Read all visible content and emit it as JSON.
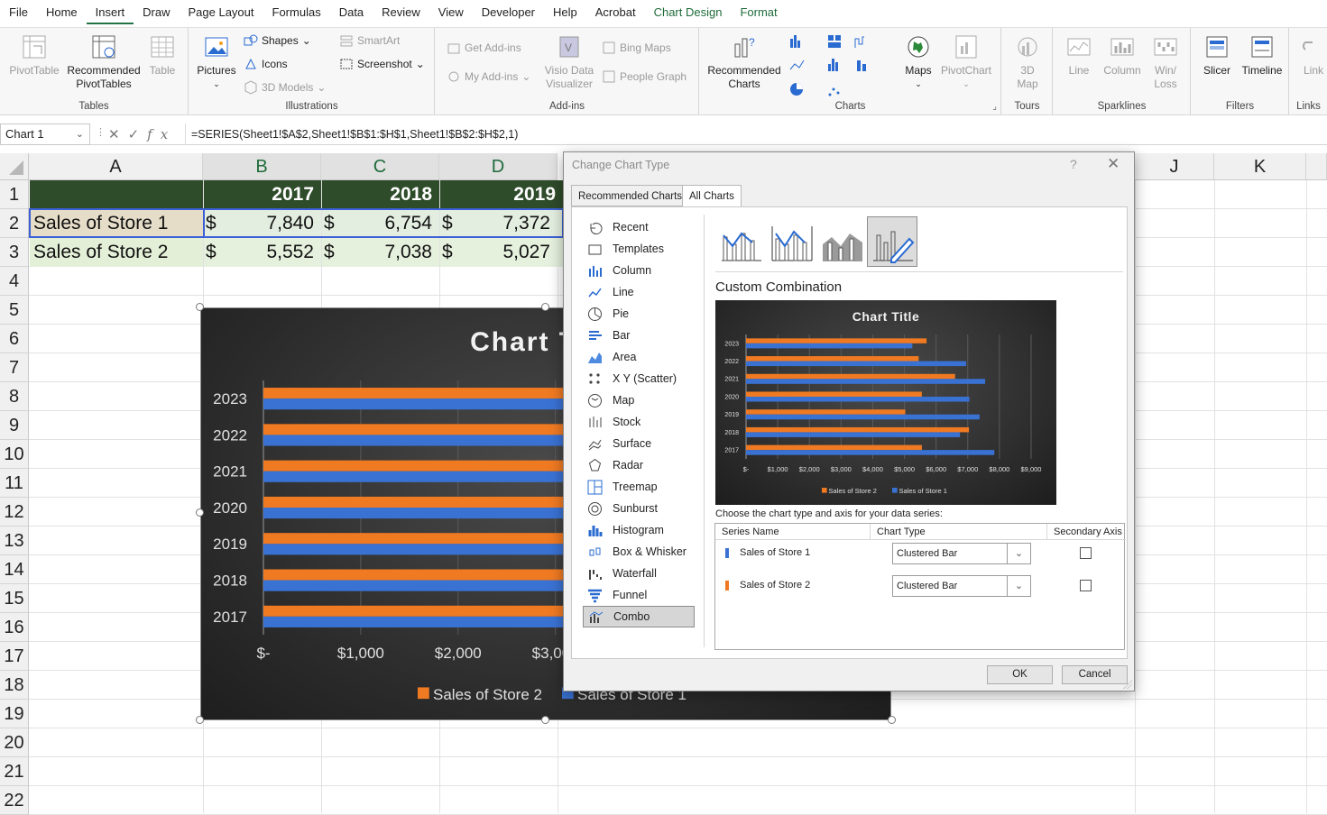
{
  "menu": {
    "tabs": [
      "File",
      "Home",
      "Insert",
      "Draw",
      "Page Layout",
      "Formulas",
      "Data",
      "Review",
      "View",
      "Developer",
      "Help",
      "Acrobat",
      "Chart Design",
      "Format"
    ],
    "active": "Insert"
  },
  "ribbon": {
    "tables": {
      "pivottable": "PivotTable",
      "recommended1": "Recommended",
      "recommended2": "PivotTables",
      "table": "Table",
      "label": "Tables"
    },
    "illustrations": {
      "pictures": "Pictures",
      "shapes": "Shapes",
      "icons": "Icons",
      "models": "3D Models",
      "smartart": "SmartArt",
      "screenshot": "Screenshot",
      "label": "Illustrations"
    },
    "addins": {
      "get": "Get Add-ins",
      "my": "My Add-ins",
      "visio1": "Visio Data",
      "visio2": "Visualizer",
      "bing": "Bing Maps",
      "people": "People Graph",
      "label": "Add-ins"
    },
    "charts": {
      "rec1": "Recommended",
      "rec2": "Charts",
      "maps": "Maps",
      "pivotchart": "PivotChart",
      "label": "Charts"
    },
    "tours": {
      "map1": "3D",
      "map2": "Map",
      "label": "Tours"
    },
    "sparklines": {
      "line": "Line",
      "column": "Column",
      "winloss1": "Win/",
      "winloss2": "Loss",
      "label": "Sparklines"
    },
    "filters": {
      "slicer": "Slicer",
      "timeline": "Timeline",
      "label": "Filters"
    },
    "links": {
      "link": "Link",
      "label": "Links"
    }
  },
  "formula_bar": {
    "name_box": "Chart 1",
    "fx": "fx",
    "formula": "=SERIES(Sheet1!$A$2,Sheet1!$B$1:$H$1,Sheet1!$B$2:$H$2,1)"
  },
  "sheet": {
    "columns": [
      "A",
      "B",
      "C",
      "D",
      "J",
      "K"
    ],
    "rows": [
      "1",
      "2",
      "3",
      "4",
      "5",
      "6",
      "7",
      "8",
      "9",
      "10",
      "11",
      "12",
      "13",
      "14",
      "15",
      "16",
      "17",
      "18",
      "19",
      "20",
      "21",
      "22"
    ],
    "header_years": [
      "2017",
      "2018",
      "2019"
    ],
    "row2": {
      "label": "Sales of Store 1",
      "currency": "$",
      "values": [
        "7,840",
        "6,754",
        "7,372"
      ]
    },
    "row3": {
      "label": "Sales of Store 2",
      "currency": "$",
      "values": [
        "5,552",
        "7,038",
        "5,027"
      ]
    }
  },
  "colors": {
    "store1": "#3a72d4",
    "store2": "#f07a22",
    "header_green": "#2e4b2a",
    "excel_green": "#217346"
  },
  "chart_data": {
    "type": "bar",
    "title": "Chart Title",
    "orientation": "horizontal",
    "categories": [
      "2017",
      "2018",
      "2019",
      "2020",
      "2021",
      "2022",
      "2023"
    ],
    "series": [
      {
        "name": "Sales of Store 1",
        "values": [
          7840,
          6754,
          7372,
          7050,
          7550,
          6950,
          5250
        ]
      },
      {
        "name": "Sales of Store 2",
        "values": [
          5552,
          7038,
          5027,
          5550,
          6600,
          5450,
          5700
        ]
      }
    ],
    "xlim": [
      0,
      9000
    ],
    "xticks": [
      "$-",
      "$1,000",
      "$2,000",
      "$3,000",
      "$4,000",
      "$5,000",
      "$6,000",
      "$7,000",
      "$8,000",
      "$9,000"
    ],
    "legend": [
      "Sales of Store 2",
      "Sales of Store 1"
    ],
    "legend_position": "bottom"
  },
  "dialog": {
    "title": "Change Chart Type",
    "help": "?",
    "close": "✕",
    "tabs": [
      "Recommended Charts",
      "All Charts"
    ],
    "chart_types": [
      "Recent",
      "Templates",
      "Column",
      "Line",
      "Pie",
      "Bar",
      "Area",
      "X Y (Scatter)",
      "Map",
      "Stock",
      "Surface",
      "Radar",
      "Treemap",
      "Sunburst",
      "Histogram",
      "Box & Whisker",
      "Waterfall",
      "Funnel",
      "Combo"
    ],
    "selected_type": "Combo",
    "subtype_title": "Custom Combination",
    "choose_label": "Choose the chart type and axis for your data series:",
    "table_headers": [
      "Series Name",
      "Chart Type",
      "Secondary Axis"
    ],
    "series_rows": [
      {
        "name": "Sales of Store 1",
        "chart_type": "Clustered Bar"
      },
      {
        "name": "Sales of Store 2",
        "chart_type": "Clustered Bar"
      }
    ],
    "ok": "OK",
    "cancel": "Cancel"
  }
}
